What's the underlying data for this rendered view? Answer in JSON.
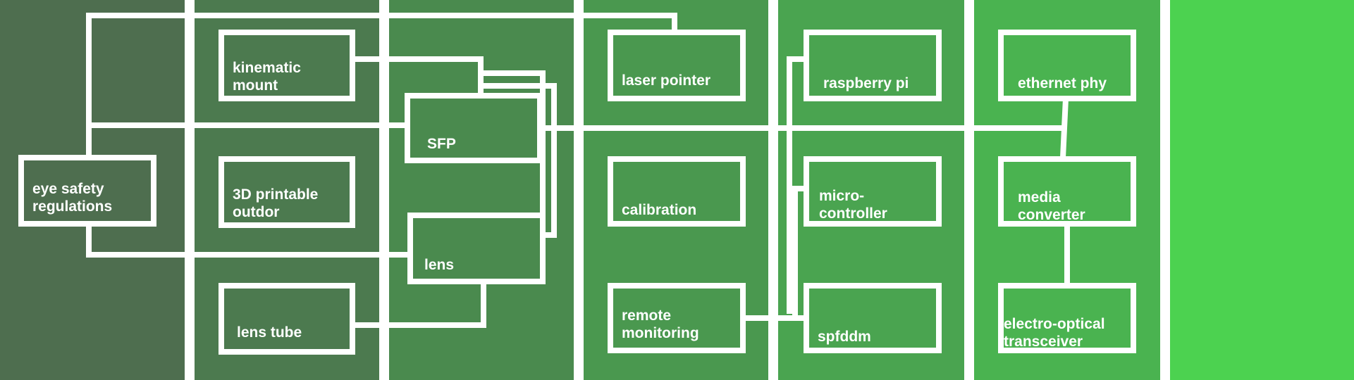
{
  "palette": {
    "columns": [
      "#4e6e4f",
      "#4c7a4f",
      "#4a8a4e",
      "#4a984f",
      "#4aa450",
      "#4ab350",
      "#4cd250"
    ],
    "line": "#ffffff",
    "text": "#ffffff"
  },
  "nodes": {
    "kinematic_mount": "kinematic mount",
    "printable_outdoor": "3D printable outdor",
    "lens_tube": "lens tube",
    "sfp": "SFP",
    "lens": "lens",
    "eye_safety": "eye safety regulations",
    "laser_pointer": "laser pointer",
    "calibration": "calibration",
    "remote_monitoring": "remote monitoring",
    "raspberry_pi": "raspberry pi",
    "microcontroller": "micro-controller",
    "spfddm": "spfddm",
    "ethernet_phy": "ethernet phy",
    "media_converter": "media converter",
    "eo_transceiver": "electro-optical transceiver"
  }
}
